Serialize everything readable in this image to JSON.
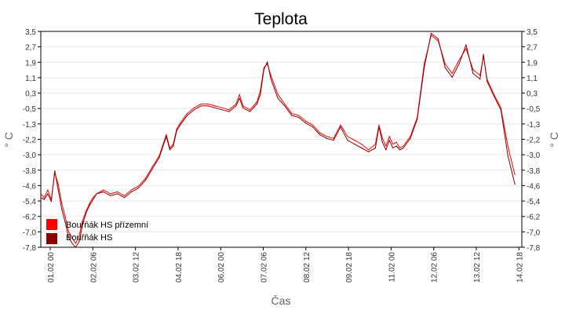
{
  "chart_data": {
    "type": "line",
    "title": "Teplota",
    "xlabel": "Čas",
    "ylabel": "° C",
    "ylim": [
      -7.8,
      3.5
    ],
    "yticks": [
      "3,5",
      "2,7",
      "1,9",
      "1,1",
      "0,3",
      "-0,5",
      "-1,3",
      "-2,2",
      "-3,0",
      "-3,8",
      "-4,6",
      "-5,4",
      "-6,2",
      "-7,0",
      "-7,8"
    ],
    "xticks": [
      "01.02 00",
      "02.02 06",
      "03.02 12",
      "04.02 18",
      "06.02 00",
      "07.02 06",
      "08.02 12",
      "09.02 18",
      "11.02 00",
      "12.02 06",
      "13.02 12",
      "14.02 18"
    ],
    "grid": true,
    "legend_position": "bottom-left",
    "legend": [
      "Bouřňák HS přízemní",
      "Bouřňák HS"
    ],
    "series": [
      {
        "name": "Bouřňák HS přízemní",
        "color": "#ff0000",
        "x": [
          0,
          3,
          6,
          9,
          12,
          15,
          18,
          21,
          24,
          27,
          30,
          33,
          36,
          39,
          42,
          45,
          48,
          54,
          60,
          66,
          72,
          78,
          84,
          90,
          96,
          102,
          108,
          111,
          114,
          117,
          120,
          126,
          132,
          138,
          144,
          150,
          156,
          162,
          168,
          171,
          174,
          180,
          186,
          189,
          192,
          195,
          198,
          204,
          210,
          216,
          222,
          228,
          234,
          240,
          246,
          252,
          258,
          264,
          270,
          276,
          282,
          288,
          291,
          294,
          297,
          300,
          303,
          306,
          309,
          312,
          318,
          324,
          330,
          336,
          342,
          348,
          354,
          360,
          366,
          372,
          378,
          381,
          384,
          390,
          396,
          402,
          408
        ],
        "y": [
          -5.0,
          -5.2,
          -4.8,
          -5.3,
          -3.9,
          -4.5,
          -5.5,
          -6.2,
          -7.0,
          -7.3,
          -7.6,
          -7.2,
          -6.4,
          -5.9,
          -5.5,
          -5.2,
          -5.0,
          -4.8,
          -5.0,
          -4.9,
          -5.1,
          -4.8,
          -4.6,
          -4.2,
          -3.6,
          -3.0,
          -1.9,
          -2.6,
          -2.4,
          -1.6,
          -1.3,
          -0.8,
          -0.5,
          -0.3,
          -0.3,
          -0.4,
          -0.5,
          -0.6,
          -0.3,
          0.2,
          -0.4,
          -0.6,
          -0.2,
          0.4,
          1.6,
          1.8,
          1.2,
          0.2,
          -0.3,
          -0.8,
          -0.9,
          -1.2,
          -1.4,
          -1.8,
          -2.0,
          -2.1,
          -1.4,
          -2.0,
          -2.2,
          -2.4,
          -2.7,
          -2.4,
          -1.4,
          -2.1,
          -2.5,
          -2.0,
          -2.4,
          -2.3,
          -2.6,
          -2.5,
          -2.0,
          -1.0,
          1.8,
          3.3,
          3.0,
          1.8,
          1.3,
          2.0,
          2.6,
          1.5,
          1.2,
          2.2,
          1.0,
          0.2,
          -0.5,
          -2.5,
          -4.0
        ]
      },
      {
        "name": "Bouřňák HS",
        "color": "#8b0000",
        "x": [
          0,
          3,
          6,
          9,
          12,
          15,
          18,
          21,
          24,
          27,
          30,
          33,
          36,
          39,
          42,
          45,
          48,
          54,
          60,
          66,
          72,
          78,
          84,
          90,
          96,
          102,
          108,
          111,
          114,
          117,
          120,
          126,
          132,
          138,
          144,
          150,
          156,
          162,
          168,
          171,
          174,
          180,
          186,
          189,
          192,
          195,
          198,
          204,
          210,
          216,
          222,
          228,
          234,
          240,
          246,
          252,
          258,
          264,
          270,
          276,
          282,
          288,
          291,
          294,
          297,
          300,
          303,
          306,
          309,
          312,
          318,
          324,
          330,
          336,
          342,
          348,
          354,
          360,
          366,
          372,
          378,
          381,
          384,
          390,
          396,
          402,
          408
        ],
        "y": [
          -5.2,
          -5.3,
          -5.0,
          -5.4,
          -3.8,
          -4.8,
          -5.8,
          -6.5,
          -7.3,
          -7.6,
          -7.8,
          -7.5,
          -6.6,
          -6.0,
          -5.6,
          -5.3,
          -5.0,
          -4.9,
          -5.1,
          -5.0,
          -5.2,
          -4.9,
          -4.7,
          -4.3,
          -3.7,
          -3.1,
          -2.0,
          -2.7,
          -2.5,
          -1.7,
          -1.4,
          -0.9,
          -0.6,
          -0.4,
          -0.4,
          -0.5,
          -0.6,
          -0.7,
          -0.4,
          0.0,
          -0.5,
          -0.7,
          -0.3,
          0.2,
          1.5,
          1.9,
          1.0,
          0.0,
          -0.4,
          -0.9,
          -1.0,
          -1.3,
          -1.5,
          -1.9,
          -2.1,
          -2.2,
          -1.5,
          -2.2,
          -2.4,
          -2.6,
          -2.8,
          -2.6,
          -1.5,
          -2.3,
          -2.7,
          -2.2,
          -2.6,
          -2.5,
          -2.7,
          -2.6,
          -2.1,
          -1.1,
          1.6,
          3.4,
          3.1,
          1.6,
          1.1,
          1.8,
          2.8,
          1.3,
          1.0,
          2.3,
          0.9,
          0.1,
          -0.6,
          -3.0,
          -4.5
        ]
      }
    ],
    "x_range": [
      0,
      414
    ],
    "x_unit_note": ""
  }
}
